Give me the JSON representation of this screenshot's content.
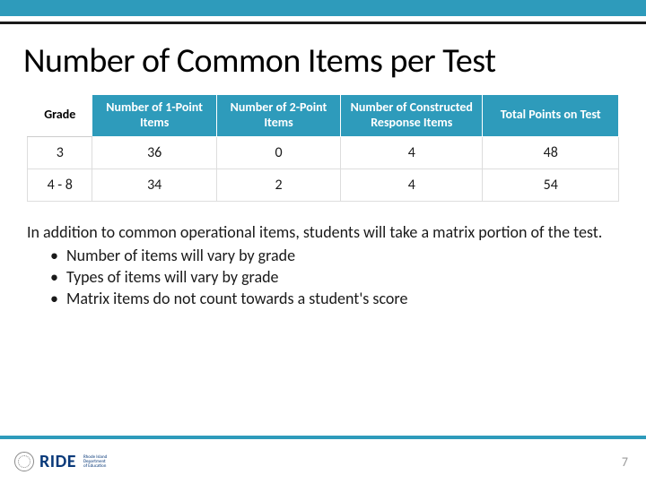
{
  "title": "Number of Common Items per Test",
  "table": {
    "type": "table",
    "header_bg": "#2e9bbb",
    "header_fg": "#ffffff",
    "border_color": "#dddddd",
    "columns": [
      "Grade",
      "Number of 1-Point Items",
      "Number of 2-Point Items",
      "Number of Constructed Response Items",
      "Total Points on Test"
    ],
    "rows": [
      [
        "3",
        "36",
        "0",
        "4",
        "48"
      ],
      [
        "4 - 8",
        "34",
        "2",
        "4",
        "54"
      ]
    ],
    "col_widths_pct": [
      11,
      21,
      21,
      24,
      23
    ],
    "header_fontsize": 14,
    "cell_fontsize": 16
  },
  "body": {
    "lead": "In addition to common operational items, students will take a matrix portion of the test.",
    "bullets": [
      "Number of items will vary by grade",
      "Types of items will vary by grade",
      "Matrix items do not count towards a student's score"
    ],
    "fontsize": 18
  },
  "theme": {
    "accent": "#2e9bbb",
    "rule": "#1a1a1a",
    "background": "#ffffff",
    "text": "#1a1a1a",
    "logo_word": "RIDE",
    "logo_sub1": "Rhode Island",
    "logo_sub2": "Department",
    "logo_sub3": "of Education",
    "logo_color": "#0a3a7a"
  },
  "page_number": "7"
}
